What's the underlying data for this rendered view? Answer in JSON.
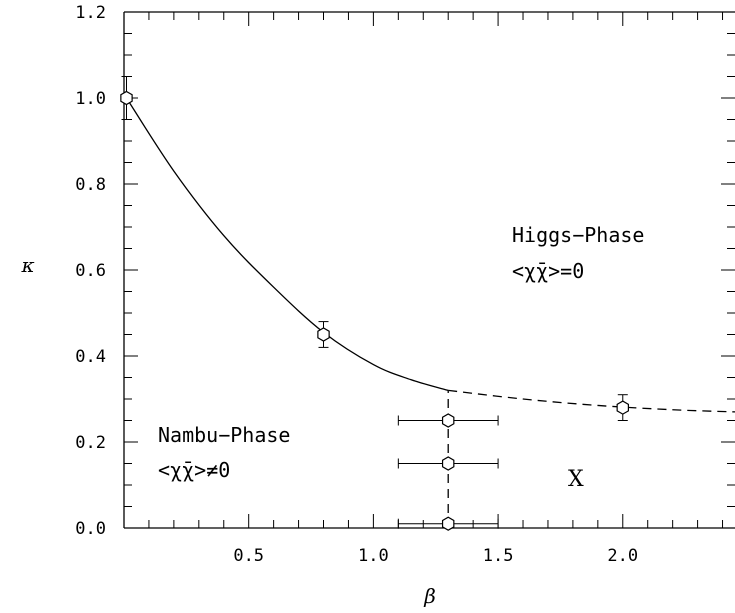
{
  "chart_data": {
    "type": "scatter",
    "xlabel": "β",
    "ylabel": "κ",
    "xlim": [
      0.0,
      2.45
    ],
    "ylim": [
      0.0,
      1.2
    ],
    "xticks": [
      "0.5",
      "1.0",
      "1.5",
      "2.0"
    ],
    "yticks": [
      "0.0",
      "0.2",
      "0.4",
      "0.6",
      "0.8",
      "1.0",
      "1.2"
    ],
    "grid": false,
    "points": [
      {
        "x": 0.01,
        "y": 1.0,
        "yerr": 0.05,
        "xerr": 0
      },
      {
        "x": 0.8,
        "y": 0.45,
        "yerr": 0.03,
        "xerr": 0
      },
      {
        "x": 2.0,
        "y": 0.28,
        "yerr": 0.03,
        "xerr": 0
      },
      {
        "x": 1.3,
        "y": 0.25,
        "yerr": 0,
        "xerr": 0.2
      },
      {
        "x": 1.3,
        "y": 0.15,
        "yerr": 0,
        "xerr": 0.2
      },
      {
        "x": 1.3,
        "y": 0.01,
        "yerr": 0,
        "xerr": 0.2
      }
    ],
    "solid_curve": [
      [
        0.01,
        1.0
      ],
      [
        0.2,
        0.83
      ],
      [
        0.4,
        0.68
      ],
      [
        0.6,
        0.56
      ],
      [
        0.8,
        0.455
      ],
      [
        1.0,
        0.38
      ],
      [
        1.15,
        0.345
      ],
      [
        1.3,
        0.32
      ]
    ],
    "dashed_curve": [
      [
        1.3,
        0.32
      ],
      [
        1.6,
        0.3
      ],
      [
        1.9,
        0.285
      ],
      [
        2.2,
        0.275
      ],
      [
        2.45,
        0.27
      ]
    ],
    "dashed_vertical": {
      "x": 1.3,
      "y_from": 0.0,
      "y_to": 0.32
    },
    "annotations": {
      "higgs_title": "Higgs−Phase",
      "higgs_condition": "<χ̄χ>=0",
      "nambu_title": "Nambu−Phase",
      "nambu_condition": "<χ̄χ>≠0",
      "x_marker": "X"
    }
  }
}
